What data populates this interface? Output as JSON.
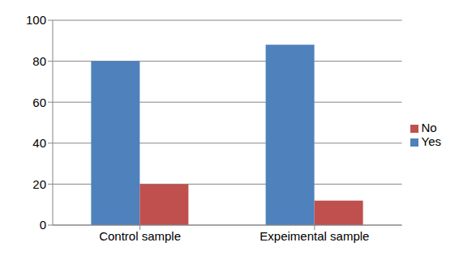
{
  "chart_data": {
    "type": "bar",
    "categories": [
      "Control sample",
      "Expeimental sample"
    ],
    "series": [
      {
        "name": "Yes",
        "color": "#4f81bd",
        "values": [
          80,
          88
        ]
      },
      {
        "name": "No",
        "color": "#c0504d",
        "values": [
          20,
          12
        ]
      }
    ],
    "ylim": [
      0,
      100
    ],
    "yticks": [
      0,
      20,
      40,
      60,
      80,
      100
    ],
    "grid": true,
    "legend": "right"
  }
}
